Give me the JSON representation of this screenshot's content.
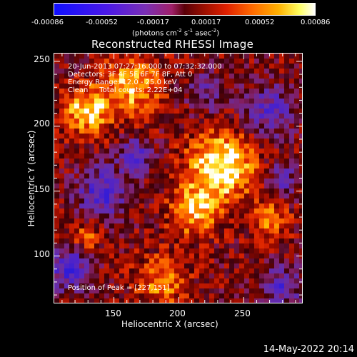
{
  "colorbar": {
    "ticks": [
      "-0.00086",
      "-0.00052",
      "-0.00017",
      "0.00017",
      "0.00052",
      "0.00086"
    ],
    "units": "(photons cm",
    "units_sup1": "-2",
    "units_mid": " s",
    "units_sup2": "-1",
    "units_end": " asec",
    "units_sup3": "-2",
    "units_close": ")"
  },
  "title": "Reconstructed RHESSI Image",
  "info": {
    "time": "20-Jun-2013 07:27:16.000 to 07:32:32.000",
    "detectors": "Detectors: 3F 4F 5F 6F 7F 8F, Att 0",
    "energy": "Energy Range: 12.0 - 25.0 keV",
    "clean": "Clean     Total counts: 2.22E+04",
    "peak": "Position of Peak = [227,151]"
  },
  "chart_data": {
    "type": "heatmap",
    "title": "Reconstructed RHESSI Image",
    "xlabel": "Heliocentric X (arcsec)",
    "ylabel": "Heliocentric Y (arcsec)",
    "xlim": [
      104,
      295
    ],
    "ylim": [
      64,
      256
    ],
    "x_ticks": [
      "150",
      "200",
      "250"
    ],
    "y_ticks": [
      "100",
      "150",
      "200",
      "250"
    ],
    "color_range": [
      -0.00086,
      0.00086
    ],
    "peak": [
      227,
      151
    ]
  },
  "footer": {
    "date": "14-May-2022 20:14"
  }
}
